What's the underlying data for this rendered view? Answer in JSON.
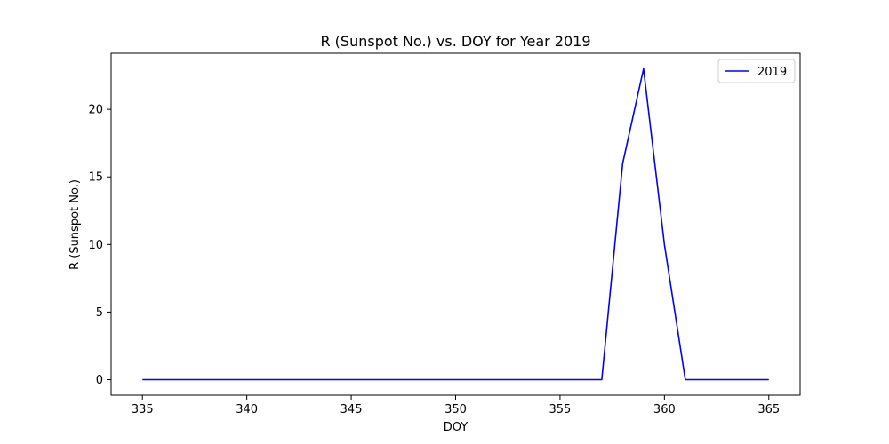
{
  "chart_data": {
    "type": "line",
    "title": "R (Sunspot No.) vs. DOY for Year 2019",
    "xlabel": "DOY",
    "ylabel": "R (Sunspot No.)",
    "xlim": [
      333.5,
      366.5
    ],
    "ylim": [
      -1.15,
      24.15
    ],
    "xticks": [
      335,
      340,
      345,
      350,
      355,
      360,
      365
    ],
    "yticks": [
      0,
      5,
      10,
      15,
      20
    ],
    "grid": false,
    "legend_position": "top-right",
    "series": [
      {
        "name": "2019",
        "color": "#0000ff",
        "x": [
          335,
          336,
          337,
          338,
          339,
          340,
          341,
          342,
          343,
          344,
          345,
          346,
          347,
          348,
          349,
          350,
          351,
          352,
          353,
          354,
          355,
          356,
          357,
          358,
          359,
          360,
          361,
          362,
          363,
          364,
          365
        ],
        "y": [
          0,
          0,
          0,
          0,
          0,
          0,
          0,
          0,
          0,
          0,
          0,
          0,
          0,
          0,
          0,
          0,
          0,
          0,
          0,
          0,
          0,
          0,
          0,
          16,
          23,
          10,
          0,
          0,
          0,
          0,
          0
        ]
      }
    ]
  }
}
